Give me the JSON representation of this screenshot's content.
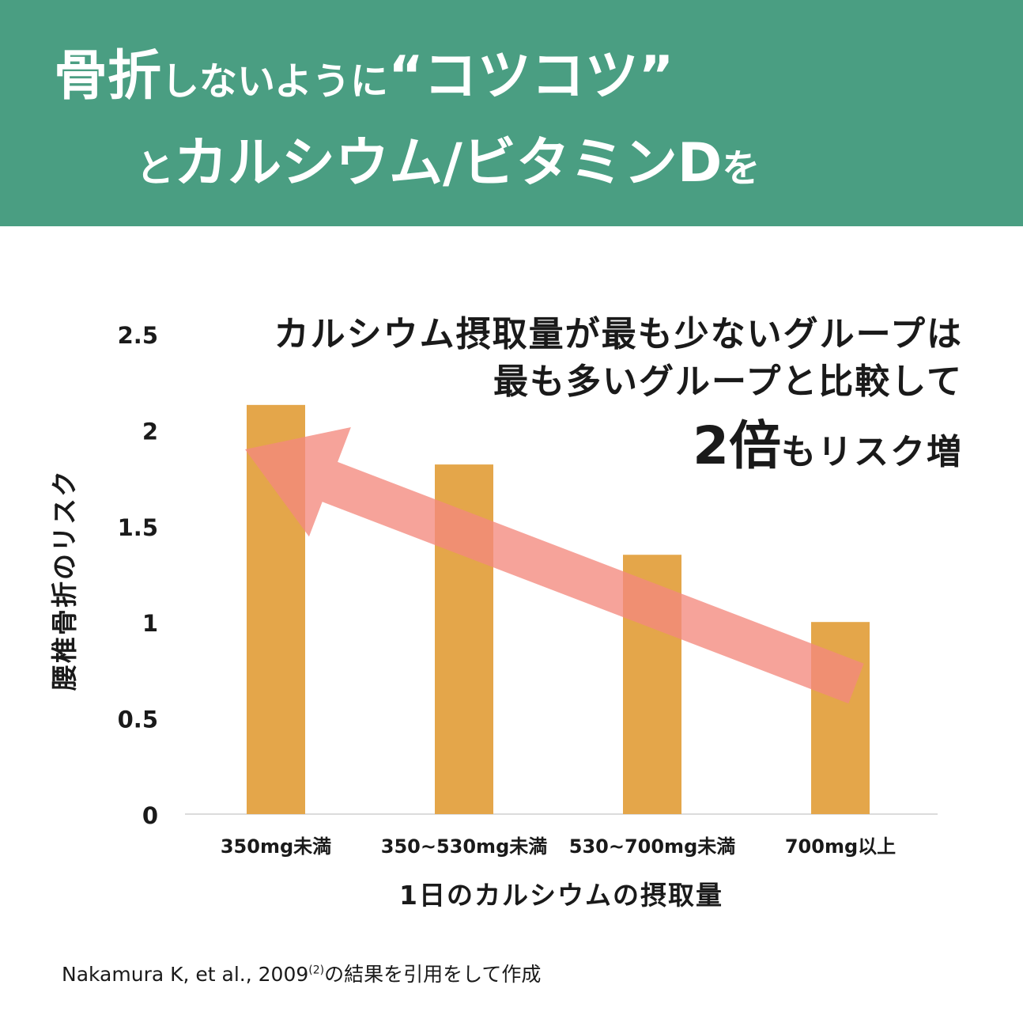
{
  "header": {
    "line1_big_a": "骨折",
    "line1_small": "しないように",
    "line1_big_b": "“コツコツ”",
    "line2_small": "と",
    "line2_big": "カルシウム/ビタミンD",
    "line2_small_b": "を"
  },
  "callout": {
    "line1": "カルシウム摂取量が最も少ないグループは",
    "line2": "最も多いグループと比較して",
    "emph": "2倍",
    "line3_rest": "もリスク増"
  },
  "source": {
    "text": "Nakamura K, et al., 2009",
    "ref": "(2)",
    "text_after": "の結果を引用をして作成"
  },
  "colors": {
    "banner": "#4a9e82",
    "bar": "#e4a64a",
    "arrow": "#f4897e"
  },
  "chart_data": {
    "type": "bar",
    "categories": [
      "350mg未満",
      "350~530mg未満",
      "530~700mg未満",
      "700mg以上"
    ],
    "values": [
      2.13,
      1.82,
      1.35,
      1.0
    ],
    "xlabel": "1日のカルシウムの摂取量",
    "ylabel": "腰椎骨折のリスク",
    "ylim": [
      0,
      2.5
    ],
    "yticks": [
      0,
      0.5,
      1,
      1.5,
      2,
      2.5
    ],
    "ytick_labels": [
      "0",
      "0.5",
      "1",
      "1.5",
      "2",
      "2.5"
    ],
    "grid": false,
    "annotation": "trend arrow pointing from the highest intake group to the lowest intake group"
  }
}
